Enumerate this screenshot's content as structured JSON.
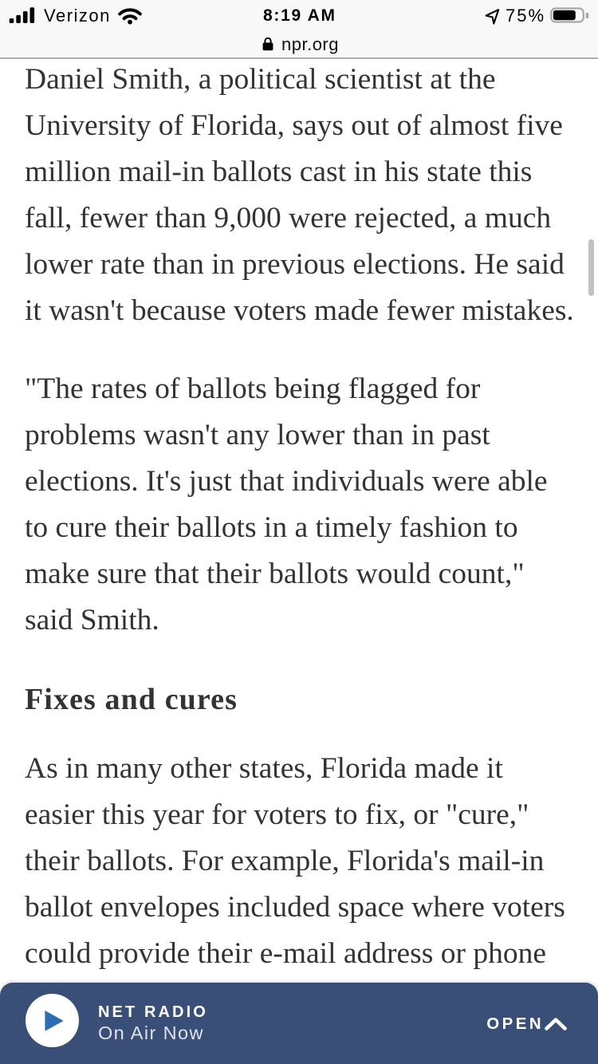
{
  "status_bar": {
    "carrier": "Verizon",
    "time": "8:19 AM",
    "battery_percent": "75%",
    "battery_level": 0.75,
    "signal_bars_filled": 4,
    "icons": {
      "cellular": "cellular-signal-icon",
      "wifi": "wifi-icon",
      "location": "location-arrow-icon",
      "battery": "battery-icon"
    }
  },
  "url_bar": {
    "domain": "npr.org",
    "lock_icon": "lock-icon"
  },
  "article": {
    "blocks": [
      {
        "type": "paragraph",
        "lines": [
          "Daniel Smith, a political scientist at the",
          "University of Florida, says out of almost five",
          "million mail-in ballots cast in his state this",
          "fall, fewer than 9,000 were rejected, a much",
          "lower rate than in previous elections. He said",
          "it wasn't because voters made fewer mistakes."
        ]
      },
      {
        "type": "paragraph",
        "lines": [
          "\"The rates of ballots being flagged for",
          "problems wasn't any lower than in past",
          "elections. It's just that individuals were able",
          "to cure their ballots in a timely fashion to",
          "make sure that their ballots would count,\"",
          "said Smith."
        ]
      },
      {
        "type": "heading",
        "lines": [
          "Fixes and cures"
        ]
      },
      {
        "type": "paragraph",
        "lines": [
          "As in many other states, Florida made it",
          "easier this year for voters to fix, or \"cure,\"",
          "their ballots. For example, Florida's mail-in",
          "ballot envelopes included space where voters",
          "could provide their e-mail address or phone"
        ]
      }
    ]
  },
  "player_bar": {
    "station": "NET RADIO",
    "status": "On Air Now",
    "open_label": "OPEN",
    "colors": {
      "bar": "#3a4f78",
      "play_triangle": "#2e6cb3"
    }
  }
}
